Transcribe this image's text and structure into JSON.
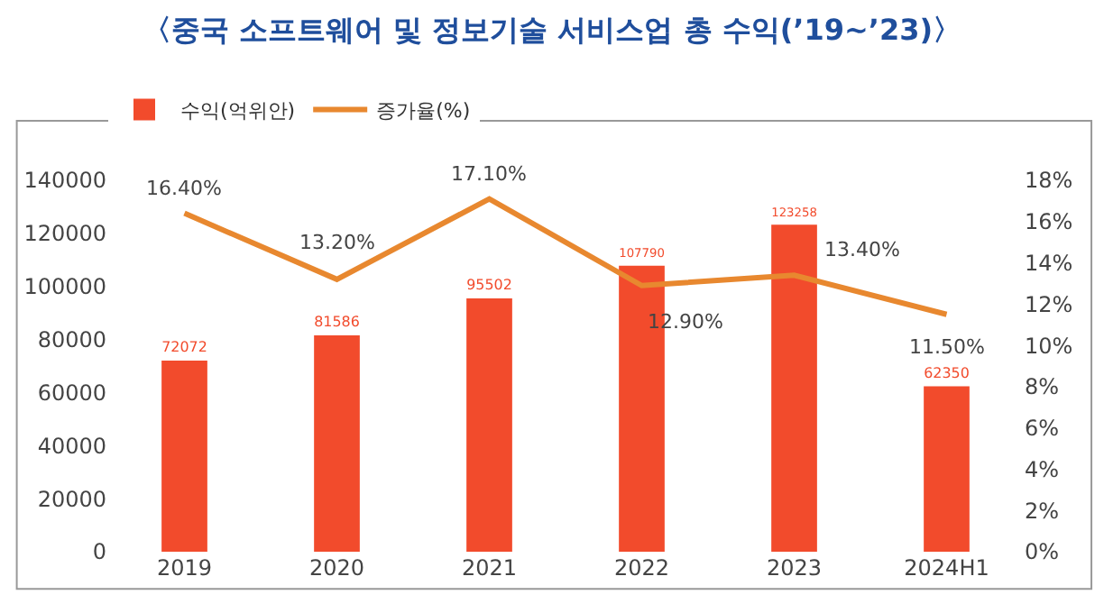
{
  "chart_data": {
    "type": "bar",
    "title": "〈중국 소프트웨어 및 정보기술 서비스업 총 수익(’19~’23)〉",
    "categories": [
      "2019",
      "2020",
      "2021",
      "2022",
      "2023",
      "2024H1"
    ],
    "series": [
      {
        "name": "수익(억위안)",
        "color": "#f24b2c",
        "values": [
          72072,
          81586,
          95502,
          107790,
          123258,
          62350
        ],
        "value_labels": [
          "72072",
          "81586",
          "95502",
          "107790",
          "123258",
          "62350"
        ]
      },
      {
        "name": "증가율(%)",
        "type": "line",
        "axis": "y2",
        "color": "#e8882f",
        "values": [
          16.4,
          13.2,
          17.1,
          12.9,
          13.4,
          11.5
        ],
        "value_labels": [
          "16.40%",
          "13.20%",
          "17.10%",
          "12.90%",
          "13.40%",
          "11.50%"
        ]
      }
    ],
    "ylim": [
      0,
      140000
    ],
    "yticks": [
      0,
      20000,
      40000,
      60000,
      80000,
      100000,
      120000,
      140000
    ],
    "y2lim": [
      0,
      18
    ],
    "y2ticks": [
      {
        "value": 0,
        "label": "0%"
      },
      {
        "value": 2,
        "label": "2%"
      },
      {
        "value": 4,
        "label": "4%"
      },
      {
        "value": 6,
        "label": "6%"
      },
      {
        "value": 8,
        "label": "8%"
      },
      {
        "value": 10,
        "label": "10%"
      },
      {
        "value": 12,
        "label": "12%"
      },
      {
        "value": 14,
        "label": "14%"
      },
      {
        "value": 16,
        "label": "16%"
      },
      {
        "value": 18,
        "label": "18%"
      }
    ],
    "legend": "top left",
    "marker": "none",
    "line_style": "solid"
  }
}
